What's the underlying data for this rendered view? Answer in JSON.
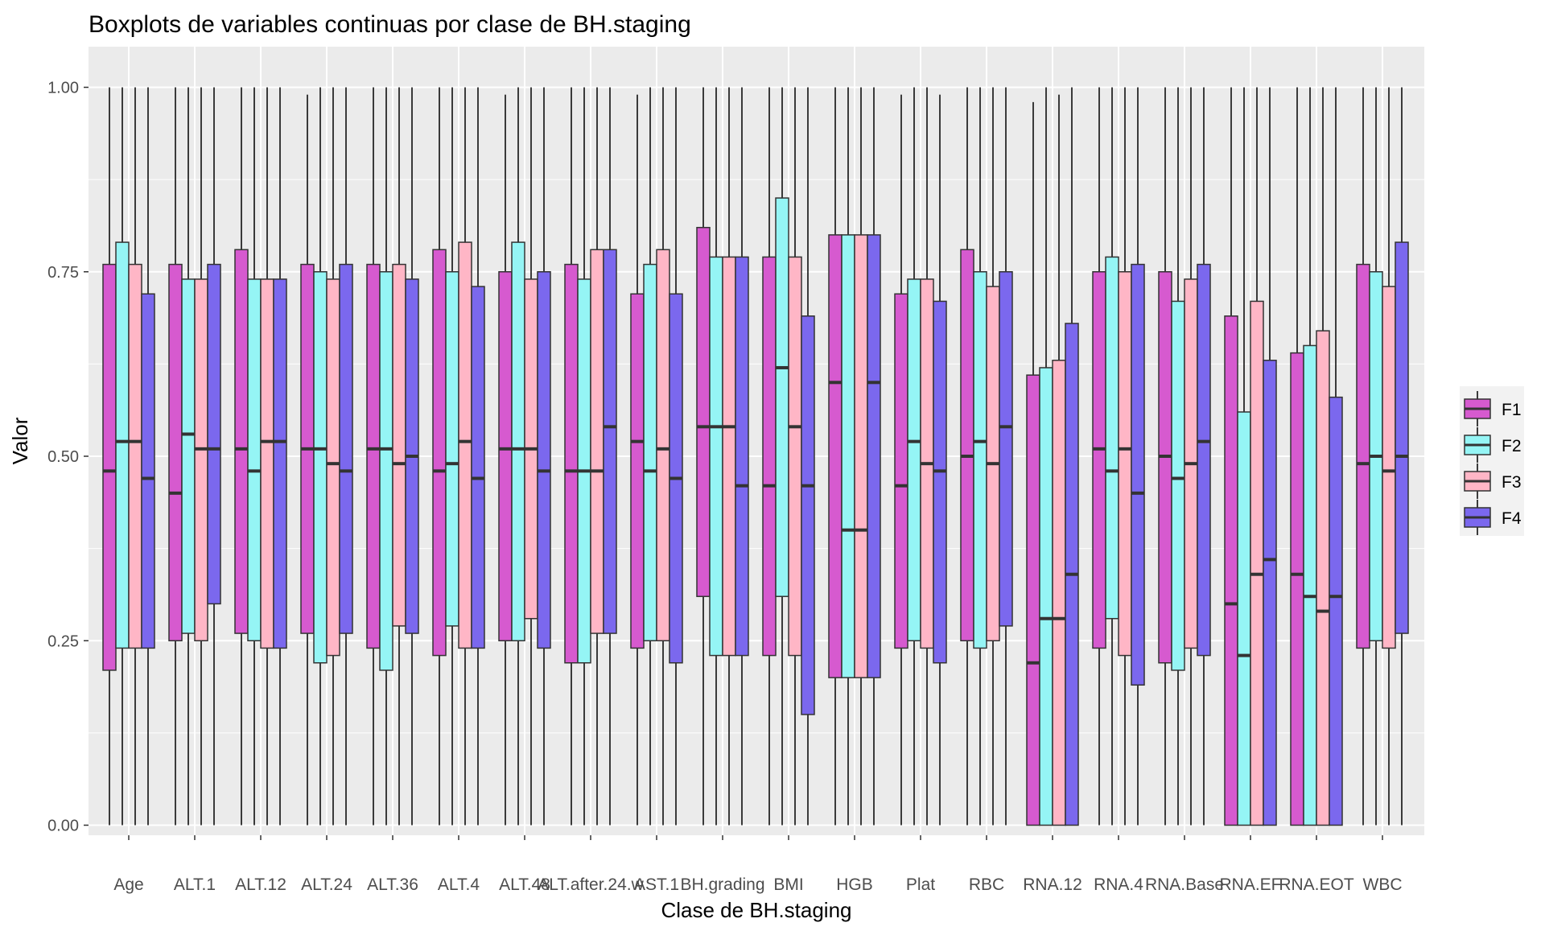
{
  "chart_data": {
    "type": "boxplot",
    "title": "Boxplots de variables continuas por clase de BH.staging",
    "xlabel": "Clase de BH.staging",
    "ylabel": "Valor",
    "ylim": [
      -0.05,
      1.05
    ],
    "yticks": [
      0,
      0.25,
      0.5,
      0.75,
      1.0
    ],
    "ytick_labels": [
      "0.00",
      "0.25",
      "0.50",
      "0.75",
      "1.00"
    ],
    "categories": [
      "Age",
      "ALT.1",
      "ALT.12",
      "ALT.24",
      "ALT.36",
      "ALT.4",
      "ALT.48",
      "ALT.after.24.w",
      "AST.1",
      "BH.grading",
      "BMI",
      "HGB",
      "Plat",
      "RBC",
      "RNA.12",
      "RNA.4",
      "RNA.Base",
      "RNA.EF",
      "RNA.EOT",
      "WBC"
    ],
    "category_labels": [
      "Age",
      "ALT.1",
      "ALT.12",
      "ALT.24",
      "ALT.36",
      "ALT.4",
      "ALT.48",
      "ALT.after.24.w",
      "AST.1",
      "BH.grading",
      "BMI",
      "HGB",
      "Plat",
      "RBC",
      "RNA.12",
      "RNA.4",
      "RNA.Base",
      "RNA.EF",
      "RNA.EOT",
      "WBC"
    ],
    "grid": true,
    "legend_position": "right",
    "legend": [
      {
        "name": "F1",
        "color": "#D65ACF"
      },
      {
        "name": "F2",
        "color": "#95F5F5"
      },
      {
        "name": "F3",
        "color": "#FFB6C6"
      },
      {
        "name": "F4",
        "color": "#7B68EE"
      }
    ],
    "series": [
      {
        "name": "F1",
        "color": "#D65ACF",
        "boxes": [
          {
            "min": 0,
            "q1": 0.21,
            "median": 0.48,
            "q3": 0.76,
            "max": 1.0
          },
          {
            "min": 0,
            "q1": 0.25,
            "median": 0.45,
            "q3": 0.76,
            "max": 1.0
          },
          {
            "min": 0,
            "q1": 0.26,
            "median": 0.51,
            "q3": 0.78,
            "max": 1.0
          },
          {
            "min": 0,
            "q1": 0.26,
            "median": 0.51,
            "q3": 0.76,
            "max": 0.99
          },
          {
            "min": 0,
            "q1": 0.24,
            "median": 0.51,
            "q3": 0.76,
            "max": 1.0
          },
          {
            "min": 0,
            "q1": 0.23,
            "median": 0.48,
            "q3": 0.78,
            "max": 1.0
          },
          {
            "min": 0,
            "q1": 0.25,
            "median": 0.51,
            "q3": 0.75,
            "max": 0.99
          },
          {
            "min": 0,
            "q1": 0.22,
            "median": 0.48,
            "q3": 0.76,
            "max": 1.0
          },
          {
            "min": 0,
            "q1": 0.24,
            "median": 0.52,
            "q3": 0.72,
            "max": 0.99
          },
          {
            "min": 0,
            "q1": 0.31,
            "median": 0.54,
            "q3": 0.81,
            "max": 1.0
          },
          {
            "min": 0,
            "q1": 0.23,
            "median": 0.46,
            "q3": 0.77,
            "max": 1.0
          },
          {
            "min": 0,
            "q1": 0.2,
            "median": 0.6,
            "q3": 0.8,
            "max": 1.0
          },
          {
            "min": 0,
            "q1": 0.24,
            "median": 0.46,
            "q3": 0.72,
            "max": 0.99
          },
          {
            "min": 0,
            "q1": 0.25,
            "median": 0.5,
            "q3": 0.78,
            "max": 1.0
          },
          {
            "min": 0,
            "q1": 0,
            "median": 0.22,
            "q3": 0.61,
            "max": 0.98
          },
          {
            "min": 0,
            "q1": 0.24,
            "median": 0.51,
            "q3": 0.75,
            "max": 1.0
          },
          {
            "min": 0,
            "q1": 0.22,
            "median": 0.5,
            "q3": 0.75,
            "max": 1.0
          },
          {
            "min": 0,
            "q1": 0,
            "median": 0.3,
            "q3": 0.69,
            "max": 1.0
          },
          {
            "min": 0,
            "q1": 0,
            "median": 0.34,
            "q3": 0.64,
            "max": 1.0
          },
          {
            "min": 0,
            "q1": 0.24,
            "median": 0.49,
            "q3": 0.76,
            "max": 1.0
          }
        ]
      },
      {
        "name": "F2",
        "color": "#95F5F5",
        "boxes": [
          {
            "min": 0,
            "q1": 0.24,
            "median": 0.52,
            "q3": 0.79,
            "max": 1.0
          },
          {
            "min": 0,
            "q1": 0.26,
            "median": 0.53,
            "q3": 0.74,
            "max": 1.0
          },
          {
            "min": 0,
            "q1": 0.25,
            "median": 0.48,
            "q3": 0.74,
            "max": 1.0
          },
          {
            "min": 0,
            "q1": 0.22,
            "median": 0.51,
            "q3": 0.75,
            "max": 1.0
          },
          {
            "min": 0,
            "q1": 0.21,
            "median": 0.51,
            "q3": 0.75,
            "max": 1.0
          },
          {
            "min": 0,
            "q1": 0.27,
            "median": 0.49,
            "q3": 0.75,
            "max": 1.0
          },
          {
            "min": 0,
            "q1": 0.25,
            "median": 0.51,
            "q3": 0.79,
            "max": 1.0
          },
          {
            "min": 0,
            "q1": 0.22,
            "median": 0.48,
            "q3": 0.74,
            "max": 1.0
          },
          {
            "min": 0,
            "q1": 0.25,
            "median": 0.48,
            "q3": 0.76,
            "max": 1.0
          },
          {
            "min": 0,
            "q1": 0.23,
            "median": 0.54,
            "q3": 0.77,
            "max": 1.0
          },
          {
            "min": 0,
            "q1": 0.31,
            "median": 0.62,
            "q3": 0.85,
            "max": 1.0
          },
          {
            "min": 0,
            "q1": 0.2,
            "median": 0.4,
            "q3": 0.8,
            "max": 1.0
          },
          {
            "min": 0,
            "q1": 0.25,
            "median": 0.52,
            "q3": 0.74,
            "max": 1.0
          },
          {
            "min": 0,
            "q1": 0.24,
            "median": 0.52,
            "q3": 0.75,
            "max": 1.0
          },
          {
            "min": 0,
            "q1": 0,
            "median": 0.28,
            "q3": 0.62,
            "max": 1.0
          },
          {
            "min": 0,
            "q1": 0.28,
            "median": 0.48,
            "q3": 0.77,
            "max": 1.0
          },
          {
            "min": 0,
            "q1": 0.21,
            "median": 0.47,
            "q3": 0.71,
            "max": 1.0
          },
          {
            "min": 0,
            "q1": 0,
            "median": 0.23,
            "q3": 0.56,
            "max": 1.0
          },
          {
            "min": 0,
            "q1": 0,
            "median": 0.31,
            "q3": 0.65,
            "max": 1.0
          },
          {
            "min": 0,
            "q1": 0.25,
            "median": 0.5,
            "q3": 0.75,
            "max": 1.0
          }
        ]
      },
      {
        "name": "F3",
        "color": "#FFB6C6",
        "boxes": [
          {
            "min": 0,
            "q1": 0.24,
            "median": 0.52,
            "q3": 0.76,
            "max": 1.0
          },
          {
            "min": 0,
            "q1": 0.25,
            "median": 0.51,
            "q3": 0.74,
            "max": 1.0
          },
          {
            "min": 0,
            "q1": 0.24,
            "median": 0.52,
            "q3": 0.74,
            "max": 1.0
          },
          {
            "min": 0,
            "q1": 0.23,
            "median": 0.49,
            "q3": 0.74,
            "max": 1.0
          },
          {
            "min": 0,
            "q1": 0.27,
            "median": 0.49,
            "q3": 0.76,
            "max": 1.0
          },
          {
            "min": 0,
            "q1": 0.24,
            "median": 0.52,
            "q3": 0.79,
            "max": 1.0
          },
          {
            "min": 0,
            "q1": 0.28,
            "median": 0.51,
            "q3": 0.74,
            "max": 1.0
          },
          {
            "min": 0,
            "q1": 0.26,
            "median": 0.48,
            "q3": 0.78,
            "max": 1.0
          },
          {
            "min": 0,
            "q1": 0.25,
            "median": 0.51,
            "q3": 0.78,
            "max": 1.0
          },
          {
            "min": 0,
            "q1": 0.23,
            "median": 0.54,
            "q3": 0.77,
            "max": 1.0
          },
          {
            "min": 0,
            "q1": 0.23,
            "median": 0.54,
            "q3": 0.77,
            "max": 1.0
          },
          {
            "min": 0,
            "q1": 0.2,
            "median": 0.4,
            "q3": 0.8,
            "max": 1.0
          },
          {
            "min": 0,
            "q1": 0.24,
            "median": 0.49,
            "q3": 0.74,
            "max": 1.0
          },
          {
            "min": 0,
            "q1": 0.25,
            "median": 0.49,
            "q3": 0.73,
            "max": 1.0
          },
          {
            "min": 0,
            "q1": 0,
            "median": 0.28,
            "q3": 0.63,
            "max": 0.99
          },
          {
            "min": 0,
            "q1": 0.23,
            "median": 0.51,
            "q3": 0.75,
            "max": 1.0
          },
          {
            "min": 0,
            "q1": 0.24,
            "median": 0.49,
            "q3": 0.74,
            "max": 1.0
          },
          {
            "min": 0,
            "q1": 0,
            "median": 0.34,
            "q3": 0.71,
            "max": 1.0
          },
          {
            "min": 0,
            "q1": 0,
            "median": 0.29,
            "q3": 0.67,
            "max": 1.0
          },
          {
            "min": 0,
            "q1": 0.24,
            "median": 0.48,
            "q3": 0.73,
            "max": 1.0
          }
        ]
      },
      {
        "name": "F4",
        "color": "#7B68EE",
        "boxes": [
          {
            "min": 0,
            "q1": 0.24,
            "median": 0.47,
            "q3": 0.72,
            "max": 1.0
          },
          {
            "min": 0,
            "q1": 0.3,
            "median": 0.51,
            "q3": 0.76,
            "max": 1.0
          },
          {
            "min": 0,
            "q1": 0.24,
            "median": 0.52,
            "q3": 0.74,
            "max": 1.0
          },
          {
            "min": 0,
            "q1": 0.26,
            "median": 0.48,
            "q3": 0.76,
            "max": 1.0
          },
          {
            "min": 0,
            "q1": 0.26,
            "median": 0.5,
            "q3": 0.74,
            "max": 1.0
          },
          {
            "min": 0,
            "q1": 0.24,
            "median": 0.47,
            "q3": 0.73,
            "max": 1.0
          },
          {
            "min": 0,
            "q1": 0.24,
            "median": 0.48,
            "q3": 0.75,
            "max": 1.0
          },
          {
            "min": 0,
            "q1": 0.26,
            "median": 0.54,
            "q3": 0.78,
            "max": 1.0
          },
          {
            "min": 0,
            "q1": 0.22,
            "median": 0.47,
            "q3": 0.72,
            "max": 1.0
          },
          {
            "min": 0,
            "q1": 0.23,
            "median": 0.46,
            "q3": 0.77,
            "max": 1.0
          },
          {
            "min": 0,
            "q1": 0.15,
            "median": 0.46,
            "q3": 0.69,
            "max": 1.0
          },
          {
            "min": 0,
            "q1": 0.2,
            "median": 0.6,
            "q3": 0.8,
            "max": 1.0
          },
          {
            "min": 0,
            "q1": 0.22,
            "median": 0.48,
            "q3": 0.71,
            "max": 0.99
          },
          {
            "min": 0,
            "q1": 0.27,
            "median": 0.54,
            "q3": 0.75,
            "max": 1.0
          },
          {
            "min": 0,
            "q1": 0,
            "median": 0.34,
            "q3": 0.68,
            "max": 1.0
          },
          {
            "min": 0,
            "q1": 0.19,
            "median": 0.45,
            "q3": 0.76,
            "max": 1.0
          },
          {
            "min": 0,
            "q1": 0.23,
            "median": 0.52,
            "q3": 0.76,
            "max": 1.0
          },
          {
            "min": 0,
            "q1": 0,
            "median": 0.36,
            "q3": 0.63,
            "max": 1.0
          },
          {
            "min": 0,
            "q1": 0,
            "median": 0.31,
            "q3": 0.58,
            "max": 1.0
          },
          {
            "min": 0,
            "q1": 0.26,
            "median": 0.5,
            "q3": 0.79,
            "max": 1.0
          }
        ]
      }
    ]
  }
}
